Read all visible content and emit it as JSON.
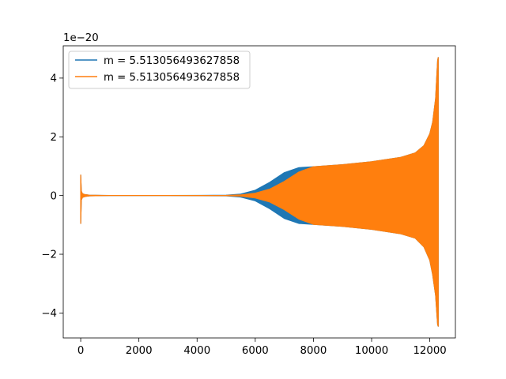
{
  "chart_data": {
    "type": "line",
    "title": "",
    "xlabel": "",
    "ylabel": "",
    "offset_text": "1e−20",
    "xlim": [
      -600,
      12880
    ],
    "ylim": [
      -4.85,
      5.1
    ],
    "y_scale": 1e-20,
    "x_ticks": [
      0,
      2000,
      4000,
      6000,
      8000,
      10000,
      12000
    ],
    "x_tick_labels": [
      "0",
      "2000",
      "4000",
      "6000",
      "8000",
      "10000",
      "12000"
    ],
    "y_ticks": [
      -4,
      -2,
      0,
      2,
      4
    ],
    "y_tick_labels": [
      "−4",
      "−2",
      "0",
      "2",
      "4"
    ],
    "grid": false,
    "legend_placement": "top-left",
    "series": [
      {
        "name": "m = 5.513056493627858",
        "color": "#1f77b4",
        "kind": "oscillating envelope",
        "envelope": {
          "x": [
            0,
            20,
            60,
            150,
            300,
            1000,
            3000,
            5000,
            5500,
            6000,
            6500,
            7000,
            7500,
            8000,
            9000,
            10000,
            11000,
            11500,
            11800,
            12000,
            12100,
            12200,
            12270,
            12290
          ],
          "upper": [
            0.7,
            0.15,
            0.06,
            0.03,
            0.01,
            0.0,
            0.0,
            0.01,
            0.05,
            0.18,
            0.45,
            0.78,
            0.95,
            0.98,
            1.05,
            1.15,
            1.3,
            1.45,
            1.7,
            2.1,
            2.5,
            3.3,
            4.6,
            4.7
          ],
          "lower": [
            -0.95,
            -0.15,
            -0.06,
            -0.03,
            -0.01,
            0.0,
            0.0,
            -0.01,
            -0.05,
            -0.18,
            -0.45,
            -0.78,
            -0.95,
            -0.98,
            -1.05,
            -1.15,
            -1.3,
            -1.45,
            -1.75,
            -2.2,
            -2.7,
            -3.4,
            -4.4,
            -4.45
          ]
        }
      },
      {
        "name": "m = 5.513056493627858",
        "color": "#ff7f0e",
        "kind": "oscillating envelope",
        "envelope": {
          "x": [
            0,
            20,
            60,
            150,
            300,
            1000,
            3000,
            5000,
            5500,
            6000,
            6500,
            7000,
            7500,
            8000,
            9000,
            10000,
            11000,
            11500,
            11800,
            12000,
            12100,
            12200,
            12270,
            12290
          ],
          "upper": [
            0.7,
            0.15,
            0.06,
            0.03,
            0.01,
            0.0,
            0.0,
            0.005,
            0.02,
            0.08,
            0.22,
            0.48,
            0.8,
            0.98,
            1.05,
            1.15,
            1.3,
            1.45,
            1.7,
            2.1,
            2.5,
            3.3,
            4.6,
            4.7
          ],
          "lower": [
            -0.95,
            -0.15,
            -0.06,
            -0.03,
            -0.01,
            0.0,
            0.0,
            -0.005,
            -0.02,
            -0.08,
            -0.22,
            -0.48,
            -0.8,
            -0.98,
            -1.05,
            -1.15,
            -1.3,
            -1.45,
            -1.75,
            -2.2,
            -2.7,
            -3.4,
            -4.4,
            -4.45
          ]
        }
      }
    ]
  }
}
